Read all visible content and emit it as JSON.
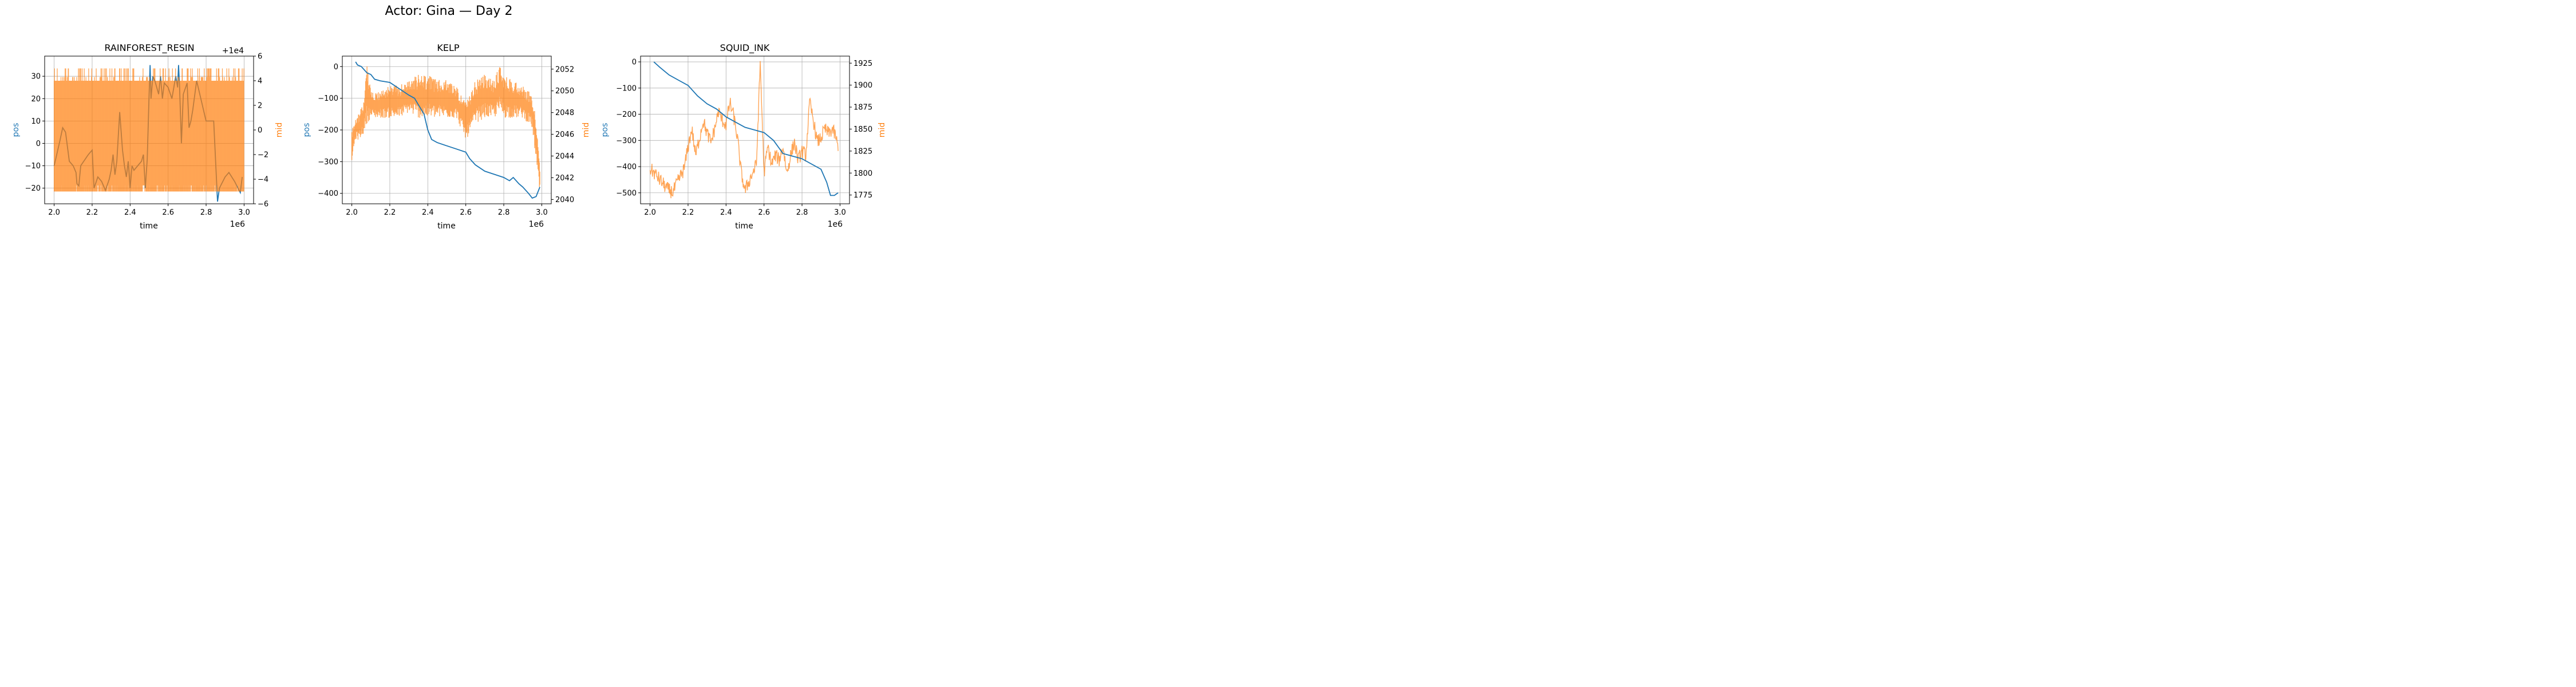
{
  "figure": {
    "title": "Actor: Gina — Day 2"
  },
  "colors": {
    "pos": "#1f77b4",
    "mid": "#ff7f0e",
    "grid": "#b0b0b0",
    "axis": "#000000"
  },
  "chart_data": [
    {
      "type": "line",
      "title": "RAINFOREST_RESIN",
      "xlabel": "time",
      "ylabel": "pos",
      "y2label": "mid",
      "x_offset_label": "1e6",
      "y2_offset_label": "+1e4",
      "xlim": [
        1.95,
        3.05
      ],
      "ylim": [
        -27,
        39
      ],
      "y2lim": [
        -6,
        6
      ],
      "xticks": [
        2.0,
        2.2,
        2.4,
        2.6,
        2.8,
        3.0
      ],
      "xtick_labels": [
        "2.0",
        "2.2",
        "2.4",
        "2.6",
        "2.8",
        "3.0"
      ],
      "yticks": [
        -20,
        -10,
        0,
        10,
        20,
        30
      ],
      "ytick_labels": [
        "−20",
        "−10",
        "0",
        "10",
        "20",
        "30"
      ],
      "y2ticks": [
        -6,
        -4,
        -2,
        0,
        2,
        4,
        6
      ],
      "y2tick_labels": [
        "−6",
        "−4",
        "−2",
        "0",
        "2",
        "4",
        "6"
      ],
      "grid": true,
      "mid_band": {
        "low": -5,
        "high": 5,
        "high_sparse": 4
      },
      "series": [
        {
          "name": "pos",
          "axis": "left",
          "x": [
            2.0,
            2.03,
            2.045,
            2.06,
            2.08,
            2.1,
            2.115,
            2.12,
            2.13,
            2.14,
            2.18,
            2.2,
            2.21,
            2.23,
            2.25,
            2.27,
            2.29,
            2.3,
            2.31,
            2.32,
            2.33,
            2.345,
            2.36,
            2.37,
            2.38,
            2.39,
            2.4,
            2.41,
            2.42,
            2.44,
            2.46,
            2.47,
            2.48,
            2.49,
            2.5,
            2.505,
            2.51,
            2.52,
            2.53,
            2.54,
            2.55,
            2.56,
            2.57,
            2.58,
            2.6,
            2.62,
            2.64,
            2.65,
            2.655,
            2.66,
            2.67,
            2.68,
            2.7,
            2.71,
            2.72,
            2.73,
            2.75,
            2.8,
            2.82,
            2.84,
            2.86,
            2.87,
            2.9,
            2.92,
            2.95,
            2.98,
            2.99
          ],
          "y": [
            -10,
            1,
            7,
            5,
            -8,
            -10,
            -13,
            -18,
            -19,
            -10,
            -5,
            -3,
            -20,
            -15,
            -17,
            -21,
            -16,
            -12,
            -5,
            -14,
            -8,
            14,
            -3,
            -10,
            -15,
            -8,
            -20,
            -10,
            -12,
            -10,
            -8,
            -5,
            -20,
            -7,
            22,
            35,
            20,
            30,
            28,
            25,
            22,
            30,
            20,
            27,
            25,
            20,
            30,
            25,
            35,
            26,
            0,
            22,
            27,
            7,
            10,
            15,
            28,
            10,
            10,
            10,
            -26,
            -20,
            -15,
            -13,
            -17,
            -22,
            -15
          ]
        },
        {
          "name": "mid",
          "axis": "right",
          "style": "dense-band"
        }
      ]
    },
    {
      "type": "line",
      "title": "KELP",
      "xlabel": "time",
      "ylabel": "pos",
      "y2label": "mid",
      "x_offset_label": "1e6",
      "xlim": [
        1.95,
        3.05
      ],
      "ylim": [
        -433,
        33
      ],
      "y2lim": [
        2039.6,
        2053.2
      ],
      "xticks": [
        2.0,
        2.2,
        2.4,
        2.6,
        2.8,
        3.0
      ],
      "xtick_labels": [
        "2.0",
        "2.2",
        "2.4",
        "2.6",
        "2.8",
        "3.0"
      ],
      "yticks": [
        -400,
        -300,
        -200,
        -100,
        0
      ],
      "ytick_labels": [
        "−400",
        "−300",
        "−200",
        "−100",
        "0"
      ],
      "y2ticks": [
        2040,
        2042,
        2044,
        2046,
        2048,
        2050,
        2052
      ],
      "y2tick_labels": [
        "2040",
        "2042",
        "2044",
        "2046",
        "2048",
        "2050",
        "2052"
      ],
      "grid": true,
      "series": [
        {
          "name": "pos",
          "axis": "left",
          "x": [
            2.02,
            2.03,
            2.05,
            2.08,
            2.1,
            2.12,
            2.15,
            2.2,
            2.25,
            2.3,
            2.33,
            2.35,
            2.38,
            2.4,
            2.42,
            2.45,
            2.5,
            2.55,
            2.6,
            2.62,
            2.65,
            2.7,
            2.75,
            2.8,
            2.83,
            2.85,
            2.88,
            2.9,
            2.93,
            2.95,
            2.97,
            2.99
          ],
          "y": [
            15,
            5,
            0,
            -20,
            -25,
            -40,
            -45,
            -50,
            -70,
            -90,
            -100,
            -120,
            -150,
            -200,
            -230,
            -240,
            -250,
            -260,
            -270,
            -290,
            -310,
            -330,
            -340,
            -350,
            -360,
            -350,
            -370,
            -380,
            -400,
            -415,
            -410,
            -380
          ]
        },
        {
          "name": "mid",
          "axis": "right",
          "style": "dense-band",
          "x": [
            2.0,
            2.02,
            2.04,
            2.06,
            2.08,
            2.1,
            2.15,
            2.2,
            2.25,
            2.3,
            2.35,
            2.4,
            2.45,
            2.5,
            2.55,
            2.6,
            2.62,
            2.65,
            2.7,
            2.75,
            2.78,
            2.8,
            2.85,
            2.9,
            2.93,
            2.95,
            2.97,
            2.99
          ],
          "low": [
            2043.5,
            2045.5,
            2045.5,
            2046,
            2047,
            2047.5,
            2047.5,
            2047.5,
            2047.5,
            2048,
            2047.5,
            2047.5,
            2047.5,
            2047.5,
            2047.5,
            2045.5,
            2046,
            2047,
            2047.5,
            2047.5,
            2048,
            2047.5,
            2047.5,
            2047.5,
            2047,
            2046.5,
            2043.5,
            2040.5
          ],
          "high": [
            2046.5,
            2047.5,
            2048,
            2049,
            2052.5,
            2050,
            2050,
            2050.5,
            2050.5,
            2051,
            2051.5,
            2051.5,
            2051,
            2051,
            2050.5,
            2049,
            2049.5,
            2051,
            2051.5,
            2051,
            2052.5,
            2051.5,
            2051,
            2050.5,
            2050,
            2049.5,
            2047.5,
            2043
          ]
        }
      ]
    },
    {
      "type": "line",
      "title": "SQUID_INK",
      "xlabel": "time",
      "ylabel": "pos",
      "y2label": "mid",
      "x_offset_label": "1e6",
      "xlim": [
        1.95,
        3.05
      ],
      "ylim": [
        -542,
        22
      ],
      "y2lim": [
        1765,
        1933
      ],
      "xticks": [
        2.0,
        2.2,
        2.4,
        2.6,
        2.8,
        3.0
      ],
      "xtick_labels": [
        "2.0",
        "2.2",
        "2.4",
        "2.6",
        "2.8",
        "3.0"
      ],
      "yticks": [
        -500,
        -400,
        -300,
        -200,
        -100,
        0
      ],
      "ytick_labels": [
        "−500",
        "−400",
        "−300",
        "−200",
        "−100",
        "0"
      ],
      "y2ticks": [
        1775,
        1800,
        1825,
        1850,
        1875,
        1900,
        1925
      ],
      "y2tick_labels": [
        "1775",
        "1800",
        "1825",
        "1850",
        "1875",
        "1900",
        "1925"
      ],
      "grid": true,
      "series": [
        {
          "name": "pos",
          "axis": "left",
          "x": [
            2.02,
            2.05,
            2.1,
            2.15,
            2.2,
            2.25,
            2.3,
            2.35,
            2.4,
            2.45,
            2.5,
            2.55,
            2.6,
            2.65,
            2.7,
            2.75,
            2.8,
            2.85,
            2.9,
            2.93,
            2.95,
            2.97,
            2.99
          ],
          "y": [
            0,
            -20,
            -50,
            -70,
            -90,
            -130,
            -160,
            -180,
            -210,
            -230,
            -250,
            -260,
            -270,
            -300,
            -350,
            -360,
            -370,
            -390,
            -410,
            -460,
            -510,
            -510,
            -500
          ]
        },
        {
          "name": "mid",
          "axis": "right",
          "style": "noisy",
          "x": [
            2.0,
            2.03,
            2.06,
            2.09,
            2.12,
            2.15,
            2.18,
            2.2,
            2.22,
            2.24,
            2.26,
            2.28,
            2.3,
            2.32,
            2.34,
            2.36,
            2.38,
            2.4,
            2.42,
            2.44,
            2.46,
            2.48,
            2.5,
            2.52,
            2.54,
            2.56,
            2.58,
            2.6,
            2.62,
            2.64,
            2.66,
            2.68,
            2.7,
            2.72,
            2.74,
            2.76,
            2.78,
            2.8,
            2.82,
            2.84,
            2.86,
            2.88,
            2.9,
            2.92,
            2.94,
            2.96,
            2.98,
            2.99
          ],
          "y": [
            1805,
            1798,
            1790,
            1782,
            1778,
            1792,
            1805,
            1830,
            1850,
            1820,
            1840,
            1860,
            1845,
            1835,
            1850,
            1870,
            1860,
            1855,
            1880,
            1865,
            1840,
            1800,
            1780,
            1790,
            1800,
            1810,
            1925,
            1800,
            1830,
            1810,
            1820,
            1815,
            1830,
            1800,
            1820,
            1835,
            1815,
            1825,
            1820,
            1880,
            1860,
            1835,
            1840,
            1850,
            1845,
            1850,
            1840,
            1825
          ]
        }
      ]
    }
  ]
}
